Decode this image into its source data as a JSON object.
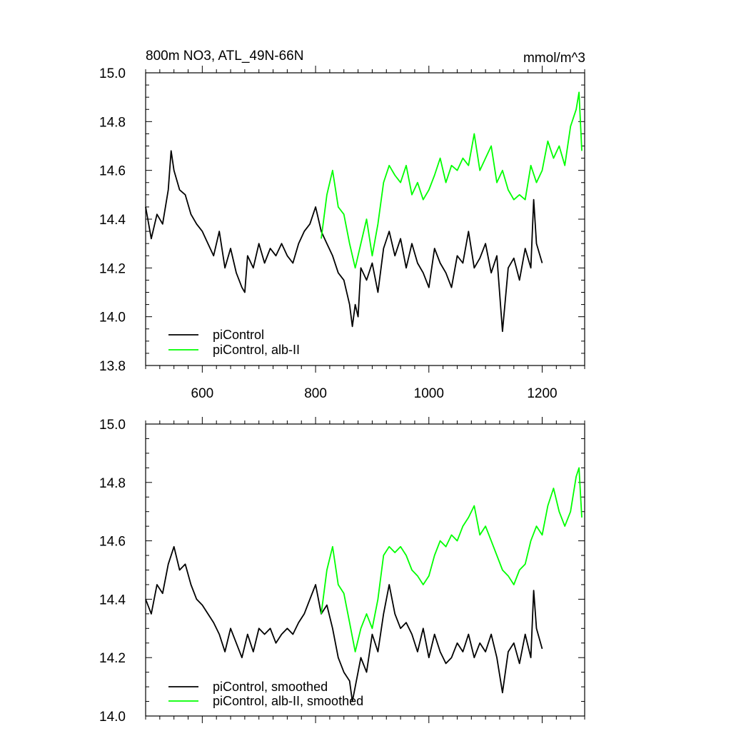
{
  "chart_data": [
    {
      "type": "line",
      "title": "800m NO3, ATL_49N-66N",
      "units": "mmol/m^3",
      "xlim": [
        500,
        1275
      ],
      "ylim": [
        13.8,
        15.0
      ],
      "xticks": [
        600,
        800,
        1000,
        1200
      ],
      "xtick_labels": [
        "600",
        "800",
        "1000",
        "1200"
      ],
      "yticks": [
        13.8,
        14.0,
        14.2,
        14.4,
        14.6,
        14.8,
        15.0
      ],
      "ytick_labels": [
        "13.8",
        "14.0",
        "14.2",
        "14.4",
        "14.6",
        "14.8",
        "15.0"
      ],
      "legend_position": "bottom-left",
      "series": [
        {
          "name": "piControl",
          "color": "#000000",
          "x": [
            500,
            510,
            520,
            530,
            540,
            545,
            550,
            560,
            570,
            580,
            590,
            600,
            610,
            620,
            630,
            640,
            650,
            660,
            670,
            675,
            680,
            690,
            700,
            710,
            720,
            730,
            740,
            750,
            760,
            770,
            780,
            790,
            800,
            810,
            820,
            830,
            840,
            850,
            860,
            865,
            870,
            875,
            880,
            890,
            900,
            910,
            920,
            930,
            940,
            950,
            960,
            970,
            980,
            990,
            1000,
            1010,
            1020,
            1030,
            1040,
            1050,
            1060,
            1070,
            1080,
            1090,
            1100,
            1110,
            1120,
            1130,
            1140,
            1150,
            1160,
            1170,
            1180,
            1185,
            1190,
            1200
          ],
          "values": [
            14.45,
            14.32,
            14.42,
            14.38,
            14.52,
            14.68,
            14.6,
            14.52,
            14.5,
            14.42,
            14.38,
            14.35,
            14.3,
            14.25,
            14.35,
            14.2,
            14.28,
            14.18,
            14.12,
            14.1,
            14.25,
            14.2,
            14.3,
            14.22,
            14.28,
            14.25,
            14.3,
            14.25,
            14.22,
            14.3,
            14.35,
            14.38,
            14.45,
            14.35,
            14.3,
            14.25,
            14.18,
            14.15,
            14.05,
            13.96,
            14.05,
            14.0,
            14.2,
            14.15,
            14.22,
            14.1,
            14.28,
            14.35,
            14.25,
            14.32,
            14.2,
            14.3,
            14.22,
            14.18,
            14.12,
            14.28,
            14.22,
            14.18,
            14.12,
            14.25,
            14.22,
            14.35,
            14.2,
            14.24,
            14.3,
            14.18,
            14.25,
            13.94,
            14.2,
            14.24,
            14.15,
            14.28,
            14.2,
            14.48,
            14.3,
            14.22
          ]
        },
        {
          "name": "piControl, alb-II",
          "color": "#00ff00",
          "x": [
            810,
            820,
            830,
            840,
            850,
            860,
            870,
            880,
            890,
            900,
            910,
            920,
            930,
            940,
            950,
            960,
            970,
            980,
            990,
            1000,
            1010,
            1020,
            1030,
            1040,
            1050,
            1060,
            1070,
            1080,
            1090,
            1100,
            1110,
            1120,
            1130,
            1140,
            1150,
            1160,
            1170,
            1180,
            1190,
            1200,
            1210,
            1220,
            1230,
            1240,
            1250,
            1260,
            1265,
            1270
          ],
          "values": [
            14.32,
            14.5,
            14.6,
            14.45,
            14.42,
            14.3,
            14.2,
            14.3,
            14.4,
            14.25,
            14.38,
            14.55,
            14.62,
            14.58,
            14.55,
            14.62,
            14.5,
            14.55,
            14.48,
            14.52,
            14.58,
            14.65,
            14.55,
            14.62,
            14.6,
            14.65,
            14.62,
            14.75,
            14.6,
            14.65,
            14.7,
            14.55,
            14.6,
            14.52,
            14.48,
            14.5,
            14.48,
            14.62,
            14.55,
            14.6,
            14.72,
            14.65,
            14.7,
            14.62,
            14.78,
            14.85,
            14.92,
            14.68
          ]
        }
      ]
    },
    {
      "type": "line",
      "title": "",
      "xlim": [
        500,
        1275
      ],
      "ylim": [
        14.0,
        15.0
      ],
      "xticks": [
        600,
        800,
        1000,
        1200
      ],
      "yticks": [
        14.0,
        14.2,
        14.4,
        14.6,
        14.8,
        15.0
      ],
      "ytick_labels": [
        "14.0",
        "14.2",
        "14.4",
        "14.6",
        "14.8",
        "15.0"
      ],
      "legend_position": "bottom-left",
      "series": [
        {
          "name": "piControl, smoothed",
          "color": "#000000",
          "x": [
            500,
            510,
            520,
            530,
            540,
            550,
            560,
            570,
            580,
            590,
            600,
            610,
            620,
            630,
            640,
            650,
            660,
            670,
            680,
            690,
            700,
            710,
            720,
            730,
            740,
            750,
            760,
            770,
            780,
            790,
            800,
            810,
            820,
            830,
            840,
            850,
            860,
            865,
            870,
            880,
            890,
            900,
            910,
            920,
            930,
            940,
            950,
            960,
            970,
            980,
            990,
            1000,
            1010,
            1020,
            1030,
            1040,
            1050,
            1060,
            1070,
            1080,
            1090,
            1100,
            1110,
            1120,
            1130,
            1140,
            1150,
            1160,
            1170,
            1180,
            1185,
            1190,
            1200
          ],
          "values": [
            14.4,
            14.35,
            14.45,
            14.42,
            14.52,
            14.58,
            14.5,
            14.52,
            14.45,
            14.4,
            14.38,
            14.35,
            14.32,
            14.28,
            14.22,
            14.3,
            14.25,
            14.2,
            14.28,
            14.22,
            14.3,
            14.28,
            14.3,
            14.25,
            14.28,
            14.3,
            14.28,
            14.32,
            14.35,
            14.4,
            14.45,
            14.35,
            14.38,
            14.3,
            14.2,
            14.15,
            14.12,
            14.05,
            14.1,
            14.2,
            14.15,
            14.28,
            14.22,
            14.35,
            14.45,
            14.35,
            14.3,
            14.32,
            14.28,
            14.22,
            14.3,
            14.2,
            14.28,
            14.22,
            14.18,
            14.2,
            14.25,
            14.22,
            14.28,
            14.2,
            14.25,
            14.22,
            14.28,
            14.2,
            14.08,
            14.22,
            14.25,
            14.18,
            14.28,
            14.2,
            14.43,
            14.3,
            14.23
          ]
        },
        {
          "name": "piControl, alb-II, smoothed",
          "color": "#00ff00",
          "x": [
            810,
            820,
            830,
            840,
            850,
            860,
            870,
            880,
            890,
            900,
            910,
            920,
            930,
            940,
            950,
            960,
            970,
            980,
            990,
            1000,
            1010,
            1020,
            1030,
            1040,
            1050,
            1060,
            1070,
            1080,
            1090,
            1100,
            1110,
            1120,
            1130,
            1140,
            1150,
            1160,
            1170,
            1180,
            1190,
            1200,
            1210,
            1220,
            1230,
            1240,
            1250,
            1260,
            1265,
            1270
          ],
          "values": [
            14.35,
            14.5,
            14.58,
            14.45,
            14.42,
            14.32,
            14.22,
            14.3,
            14.35,
            14.3,
            14.4,
            14.55,
            14.58,
            14.56,
            14.58,
            14.55,
            14.5,
            14.48,
            14.45,
            14.48,
            14.55,
            14.6,
            14.58,
            14.62,
            14.6,
            14.65,
            14.68,
            14.72,
            14.62,
            14.65,
            14.6,
            14.55,
            14.5,
            14.48,
            14.45,
            14.5,
            14.52,
            14.6,
            14.65,
            14.62,
            14.72,
            14.78,
            14.7,
            14.65,
            14.7,
            14.82,
            14.85,
            14.68
          ]
        }
      ]
    }
  ]
}
